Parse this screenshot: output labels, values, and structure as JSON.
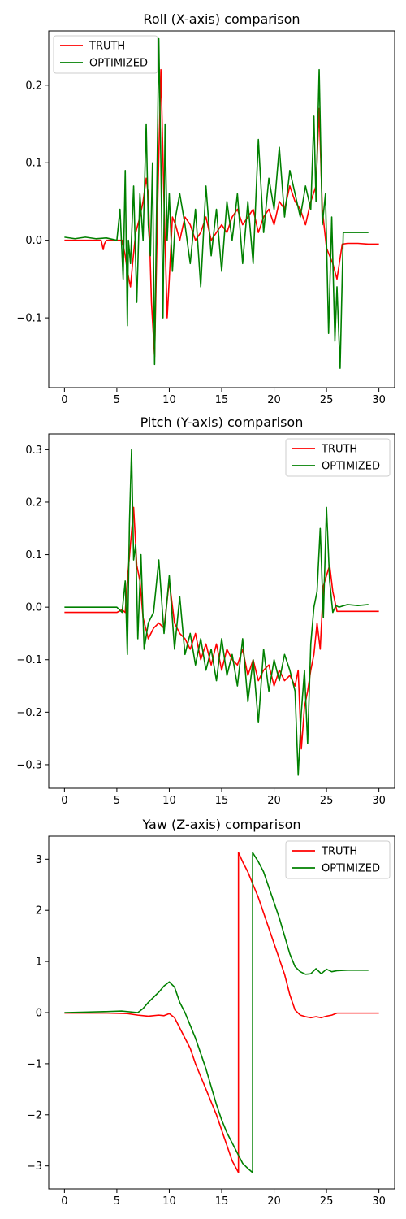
{
  "chart_data": [
    {
      "type": "line",
      "title": "Roll (X-axis) comparison",
      "xlabel": "",
      "ylabel": "",
      "xlim": [
        -1.5,
        31.5
      ],
      "ylim": [
        -0.19,
        0.27
      ],
      "xticks": [
        0,
        5,
        10,
        15,
        20,
        25,
        30
      ],
      "yticks": [
        -0.1,
        0.0,
        0.1,
        0.2
      ],
      "ytick_labels": [
        "−0.1",
        "0.0",
        "0.1",
        "0.2"
      ],
      "legend": {
        "position": "top-left"
      },
      "grid": false,
      "series": [
        {
          "name": "TRUTH",
          "color": "#ff0000",
          "x": [
            0,
            3.5,
            3.7,
            3.8,
            4.0,
            5.5,
            5.8,
            6.0,
            6.3,
            6.5,
            6.8,
            7.2,
            7.5,
            7.8,
            8.0,
            8.3,
            8.6,
            8.9,
            9.2,
            9.5,
            9.8,
            10.0,
            10.3,
            10.6,
            11.0,
            11.5,
            12.0,
            12.5,
            13.0,
            13.5,
            14.0,
            14.5,
            15.0,
            15.5,
            16.0,
            16.5,
            17.0,
            17.5,
            18.0,
            18.5,
            19.0,
            19.5,
            20.0,
            20.5,
            21.0,
            21.5,
            22.0,
            22.5,
            23.0,
            23.5,
            24.0,
            24.3,
            24.6,
            25.0,
            25.3,
            25.6,
            26.0,
            26.5,
            27.0,
            28.0,
            29.0,
            30.0
          ],
          "y": [
            0.0,
            0.0,
            -0.012,
            -0.005,
            0.0,
            0.0,
            -0.02,
            -0.04,
            -0.06,
            -0.03,
            0.01,
            0.03,
            0.05,
            0.08,
            0.06,
            -0.08,
            -0.15,
            0.05,
            0.22,
            0.05,
            -0.1,
            -0.05,
            0.03,
            0.02,
            0.0,
            0.03,
            0.02,
            0.0,
            0.01,
            0.03,
            0.0,
            0.01,
            0.02,
            0.01,
            0.03,
            0.04,
            0.02,
            0.03,
            0.04,
            0.01,
            0.03,
            0.04,
            0.02,
            0.05,
            0.04,
            0.07,
            0.05,
            0.04,
            0.02,
            0.05,
            0.07,
            0.17,
            0.04,
            -0.01,
            -0.02,
            -0.03,
            -0.05,
            -0.005,
            -0.004,
            -0.004,
            -0.005,
            -0.005
          ]
        },
        {
          "name": "OPTIMIZED",
          "color": "#008000",
          "x": [
            0,
            1.0,
            2.0,
            3.0,
            4.0,
            5.0,
            5.3,
            5.6,
            5.8,
            6.0,
            6.1,
            6.3,
            6.6,
            6.9,
            7.2,
            7.5,
            7.8,
            8.0,
            8.2,
            8.4,
            8.6,
            8.8,
            9.0,
            9.2,
            9.4,
            9.6,
            9.8,
            10.0,
            10.3,
            10.6,
            11.0,
            11.5,
            12.0,
            12.5,
            13.0,
            13.5,
            14.0,
            14.5,
            15.0,
            15.5,
            16.0,
            16.5,
            17.0,
            17.5,
            18.0,
            18.5,
            19.0,
            19.5,
            20.0,
            20.5,
            21.0,
            21.5,
            22.0,
            22.5,
            23.0,
            23.5,
            23.8,
            24.0,
            24.3,
            24.6,
            24.9,
            25.2,
            25.5,
            25.8,
            26.0,
            26.3,
            26.6,
            27.0,
            28.0,
            29.0
          ],
          "y": [
            0.004,
            0.002,
            0.004,
            0.002,
            0.003,
            0.0,
            0.04,
            -0.05,
            0.09,
            -0.11,
            0.0,
            -0.03,
            0.07,
            -0.08,
            0.06,
            0.0,
            0.15,
            0.02,
            -0.02,
            0.1,
            -0.16,
            0.05,
            0.26,
            0.1,
            -0.1,
            0.15,
            0.0,
            0.06,
            -0.04,
            0.03,
            0.06,
            0.02,
            -0.03,
            0.04,
            -0.06,
            0.07,
            -0.02,
            0.04,
            -0.04,
            0.05,
            0.0,
            0.06,
            -0.03,
            0.05,
            -0.03,
            0.13,
            0.01,
            0.08,
            0.04,
            0.12,
            0.03,
            0.09,
            0.06,
            0.03,
            0.07,
            0.04,
            0.16,
            0.05,
            0.22,
            0.02,
            0.06,
            -0.12,
            0.03,
            -0.13,
            -0.06,
            -0.165,
            0.01,
            0.01,
            0.01,
            0.01
          ]
        }
      ]
    },
    {
      "type": "line",
      "title": "Pitch (Y-axis) comparison",
      "xlabel": "",
      "ylabel": "",
      "xlim": [
        -1.5,
        31.5
      ],
      "ylim": [
        -0.345,
        0.33
      ],
      "xticks": [
        0,
        5,
        10,
        15,
        20,
        25,
        30
      ],
      "yticks": [
        -0.3,
        -0.2,
        -0.1,
        0.0,
        0.1,
        0.2,
        0.3
      ],
      "ytick_labels": [
        "−0.3",
        "−0.2",
        "−0.1",
        "0.0",
        "0.1",
        "0.2",
        "0.3"
      ],
      "legend": {
        "position": "top-right"
      },
      "grid": false,
      "series": [
        {
          "name": "TRUTH",
          "color": "#ff0000",
          "x": [
            0,
            1.0,
            2.0,
            3.0,
            4.0,
            5.0,
            5.5,
            5.8,
            6.0,
            6.3,
            6.6,
            6.9,
            7.2,
            7.5,
            8.0,
            8.5,
            9.0,
            9.5,
            10.0,
            10.5,
            11.0,
            11.5,
            12.0,
            12.5,
            13.0,
            13.5,
            14.0,
            14.5,
            15.0,
            15.5,
            16.0,
            16.5,
            17.0,
            17.5,
            18.0,
            18.5,
            19.0,
            19.5,
            20.0,
            20.5,
            21.0,
            21.5,
            22.0,
            22.3,
            22.6,
            22.9,
            23.2,
            23.5,
            23.8,
            24.1,
            24.4,
            24.7,
            25.0,
            25.3,
            25.6,
            26.0,
            27.0,
            28.0,
            29.0,
            30.0
          ],
          "y": [
            -0.01,
            -0.01,
            -0.01,
            -0.01,
            -0.01,
            -0.01,
            -0.005,
            -0.01,
            0.05,
            0.12,
            0.19,
            0.08,
            0.05,
            -0.02,
            -0.06,
            -0.04,
            -0.03,
            -0.04,
            0.05,
            -0.03,
            -0.05,
            -0.06,
            -0.08,
            -0.05,
            -0.1,
            -0.07,
            -0.11,
            -0.07,
            -0.12,
            -0.08,
            -0.1,
            -0.11,
            -0.08,
            -0.13,
            -0.1,
            -0.14,
            -0.12,
            -0.11,
            -0.15,
            -0.12,
            -0.14,
            -0.13,
            -0.15,
            -0.12,
            -0.27,
            -0.19,
            -0.16,
            -0.12,
            -0.09,
            -0.03,
            -0.08,
            0.04,
            0.06,
            0.08,
            0.03,
            -0.008,
            -0.008,
            -0.008,
            -0.008,
            -0.008
          ]
        },
        {
          "name": "OPTIMIZED",
          "color": "#008000",
          "x": [
            0,
            1.0,
            2.0,
            3.0,
            4.0,
            5.0,
            5.5,
            5.8,
            6.0,
            6.2,
            6.4,
            6.6,
            6.8,
            7.0,
            7.3,
            7.6,
            8.0,
            8.5,
            9.0,
            9.5,
            10.0,
            10.5,
            11.0,
            11.5,
            12.0,
            12.5,
            13.0,
            13.5,
            14.0,
            14.5,
            15.0,
            15.5,
            16.0,
            16.5,
            17.0,
            17.5,
            18.0,
            18.5,
            19.0,
            19.5,
            20.0,
            20.5,
            21.0,
            21.5,
            22.0,
            22.3,
            22.6,
            22.9,
            23.2,
            23.5,
            23.8,
            24.1,
            24.4,
            24.7,
            25.0,
            25.3,
            25.6,
            25.9,
            26.2,
            27.0,
            28.0,
            29.0
          ],
          "y": [
            0.0,
            0.0,
            0.0,
            0.0,
            0.0,
            0.0,
            -0.01,
            0.05,
            -0.09,
            0.16,
            0.3,
            0.09,
            0.12,
            -0.06,
            0.1,
            -0.08,
            -0.03,
            -0.01,
            0.09,
            -0.05,
            0.06,
            -0.08,
            0.02,
            -0.09,
            -0.05,
            -0.11,
            -0.06,
            -0.12,
            -0.08,
            -0.14,
            -0.06,
            -0.13,
            -0.09,
            -0.15,
            -0.06,
            -0.18,
            -0.1,
            -0.22,
            -0.08,
            -0.16,
            -0.1,
            -0.14,
            -0.09,
            -0.12,
            -0.16,
            -0.32,
            -0.2,
            -0.12,
            -0.26,
            -0.07,
            0.0,
            0.03,
            0.15,
            -0.02,
            0.19,
            0.05,
            -0.01,
            0.003,
            0.0,
            0.005,
            0.003,
            0.005
          ]
        }
      ]
    },
    {
      "type": "line",
      "title": "Yaw (Z-axis) comparison",
      "xlabel": "",
      "ylabel": "",
      "xlim": [
        -1.5,
        31.5
      ],
      "ylim": [
        -3.45,
        3.45
      ],
      "xticks": [
        0,
        5,
        10,
        15,
        20,
        25,
        30
      ],
      "yticks": [
        -3,
        -2,
        -1,
        0,
        1,
        2,
        3
      ],
      "ytick_labels": [
        "−3",
        "−2",
        "−1",
        "0",
        "1",
        "2",
        "3"
      ],
      "legend": {
        "position": "top-right"
      },
      "grid": false,
      "series": [
        {
          "name": "TRUTH",
          "color": "#ff0000",
          "x": [
            0,
            2.0,
            4.0,
            6.0,
            7.0,
            8.0,
            9.0,
            9.5,
            10.0,
            10.5,
            11.0,
            11.5,
            12.0,
            12.5,
            13.0,
            13.5,
            14.0,
            14.5,
            15.0,
            15.5,
            16.0,
            16.6,
            16.6,
            17.0,
            17.5,
            18.0,
            18.5,
            19.0,
            19.5,
            20.0,
            20.5,
            21.0,
            21.5,
            22.0,
            22.5,
            23.0,
            23.5,
            24.0,
            24.5,
            25.0,
            25.5,
            26.0,
            27.0,
            28.0,
            29.0,
            30.0
          ],
          "y": [
            -0.01,
            -0.01,
            -0.01,
            -0.02,
            -0.05,
            -0.07,
            -0.05,
            -0.06,
            -0.02,
            -0.1,
            -0.3,
            -0.5,
            -0.7,
            -1.0,
            -1.25,
            -1.5,
            -1.75,
            -2.0,
            -2.3,
            -2.6,
            -2.9,
            -3.13,
            3.13,
            2.95,
            2.75,
            2.5,
            2.25,
            1.95,
            1.65,
            1.35,
            1.05,
            0.75,
            0.35,
            0.05,
            -0.05,
            -0.08,
            -0.1,
            -0.08,
            -0.1,
            -0.07,
            -0.05,
            -0.01,
            -0.01,
            -0.01,
            -0.01,
            -0.01
          ]
        },
        {
          "name": "OPTIMIZED",
          "color": "#008000",
          "x": [
            0,
            2.0,
            4.0,
            5.5,
            6.0,
            6.5,
            7.0,
            7.5,
            8.0,
            8.5,
            9.0,
            9.5,
            10.0,
            10.5,
            11.0,
            11.5,
            12.0,
            12.5,
            13.0,
            13.5,
            14.0,
            14.5,
            15.0,
            15.5,
            16.0,
            16.5,
            17.0,
            17.5,
            17.95,
            17.95,
            18.5,
            19.0,
            19.5,
            20.0,
            20.5,
            21.0,
            21.5,
            22.0,
            22.5,
            23.0,
            23.5,
            24.0,
            24.5,
            25.0,
            25.5,
            26.0,
            27.0,
            28.0,
            29.0
          ],
          "y": [
            0.0,
            0.01,
            0.02,
            0.03,
            0.02,
            0.01,
            0.0,
            0.08,
            0.2,
            0.3,
            0.4,
            0.52,
            0.6,
            0.5,
            0.2,
            0.0,
            -0.25,
            -0.5,
            -0.8,
            -1.1,
            -1.45,
            -1.8,
            -2.1,
            -2.35,
            -2.55,
            -2.75,
            -2.95,
            -3.05,
            -3.13,
            3.13,
            2.95,
            2.75,
            2.45,
            2.15,
            1.85,
            1.5,
            1.15,
            0.9,
            0.8,
            0.75,
            0.76,
            0.86,
            0.76,
            0.85,
            0.8,
            0.82,
            0.83,
            0.83,
            0.83
          ]
        }
      ]
    }
  ]
}
